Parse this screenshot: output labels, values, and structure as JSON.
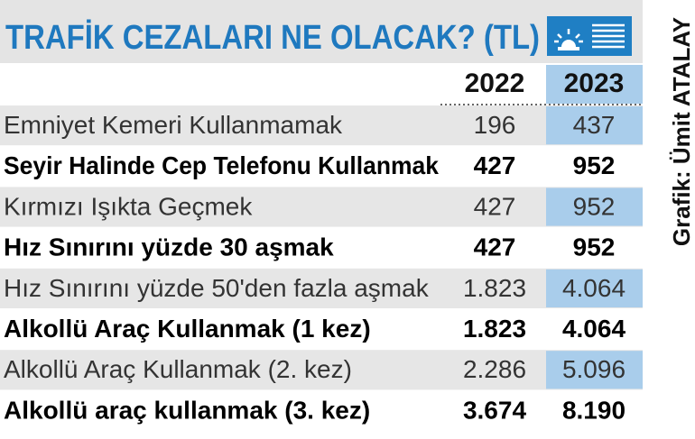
{
  "header": {
    "title": "TRAFİK CEZALARI NE OLACAK? (TL)",
    "credit": "Grafik: Ümit ATALAY"
  },
  "table": {
    "columns": [
      "2022",
      "2023"
    ],
    "rows": [
      [
        "Emniyet Kemeri Kullanmamak",
        "196",
        "437"
      ],
      [
        "Seyir Halinde Cep Telefonu Kullanmak",
        "427",
        "952"
      ],
      [
        "Kırmızı Işıkta Geçmek",
        "427",
        "952"
      ],
      [
        "Hız Sınırını yüzde 30 aşmak",
        "427",
        "952"
      ],
      [
        "Hız Sınırını yüzde 50'den fazla aşmak",
        "1.823",
        "4.064"
      ],
      [
        "Alkollü Araç Kullanmak (1 kez)",
        "1.823",
        "4.064"
      ],
      [
        "Alkollü Araç Kullanmak (2. kez)",
        "2.286",
        "5.096"
      ],
      [
        "Alkollü araç kullanmak (3. kez)",
        "3.674",
        "8.190"
      ]
    ]
  }
}
